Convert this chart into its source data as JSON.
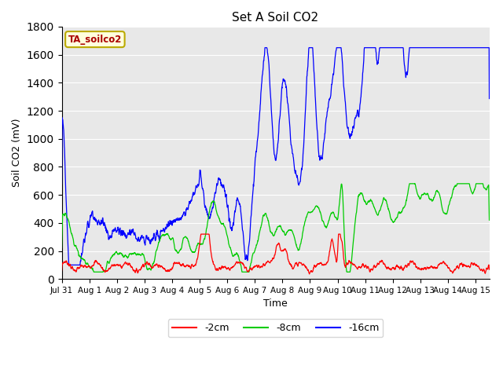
{
  "title": "Set A Soil CO2",
  "xlabel": "Time",
  "ylabel": "Soil CO2 (mV)",
  "ylim": [
    0,
    1800
  ],
  "xlim_days": [
    0,
    15.5
  ],
  "background_color": "#ffffff",
  "plot_bg_color": "#e8e8e8",
  "grid_color": "#ffffff",
  "colors": {
    "2cm": "#ff0000",
    "8cm": "#00cc00",
    "16cm": "#0000ff"
  },
  "legend_labels": [
    "-2cm",
    "-8cm",
    "-16cm"
  ],
  "annotation_text": "TA_soilco2",
  "annotation_bg": "#ffffdd",
  "annotation_edge": "#bbaa00",
  "annotation_text_color": "#aa0000",
  "x_tick_labels": [
    "Jul 31",
    "Aug 1",
    "Aug 2",
    "Aug 3",
    "Aug 4",
    "Aug 5",
    "Aug 6",
    "Aug 7",
    "Aug 8",
    "Aug 9",
    "Aug 10",
    "Aug 11",
    "Aug 12",
    "Aug 13",
    "Aug 14",
    "Aug 15"
  ],
  "x_tick_positions": [
    0,
    1,
    2,
    3,
    4,
    5,
    6,
    7,
    8,
    9,
    10,
    11,
    12,
    13,
    14,
    15
  ],
  "ytick_positions": [
    0,
    200,
    400,
    600,
    800,
    1000,
    1200,
    1400,
    1600,
    1800
  ]
}
